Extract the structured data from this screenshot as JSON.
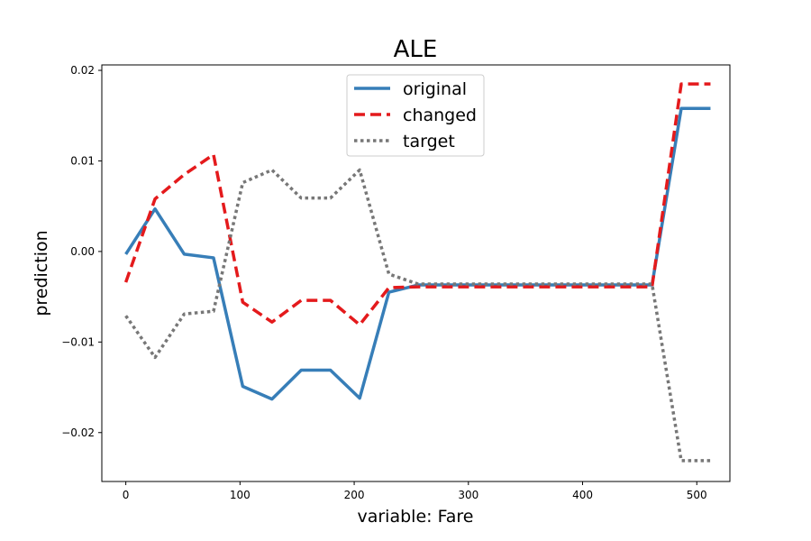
{
  "chart_data": {
    "type": "line",
    "title": "ALE",
    "xlabel": "variable: Fare",
    "ylabel": "prediction",
    "xlim": [
      -21,
      529
    ],
    "ylim": [
      -0.0254,
      0.0206
    ],
    "xticks": [
      0,
      100,
      200,
      300,
      400,
      500
    ],
    "yticks": [
      -0.02,
      -0.01,
      0.0,
      0.01,
      0.02
    ],
    "xtick_labels": [
      "0",
      "100",
      "200",
      "300",
      "400",
      "500"
    ],
    "ytick_labels": [
      "−0.02",
      "−0.01",
      "0.00",
      "0.01",
      "0.02"
    ],
    "grid": false,
    "legend_position": "top-center",
    "x": [
      0,
      25.6,
      51.2,
      76.8,
      102.4,
      128,
      153.6,
      179.2,
      204.8,
      230.4,
      256,
      281.6,
      307.2,
      332.8,
      358.4,
      384,
      409.6,
      435.2,
      460.8,
      486.4,
      512
    ],
    "series": [
      {
        "name": "original",
        "color": "#377eb8",
        "dash": "solid",
        "values": [
          -0.0003,
          0.0047,
          -0.0003,
          -0.0007,
          -0.0149,
          -0.0163,
          -0.0131,
          -0.0131,
          -0.0162,
          -0.0045,
          -0.0037,
          -0.0037,
          -0.0037,
          -0.0037,
          -0.0037,
          -0.0037,
          -0.0037,
          -0.0037,
          -0.0037,
          0.0158,
          0.0158
        ]
      },
      {
        "name": "changed",
        "color": "#e41a1c",
        "dash": "dashed",
        "values": [
          -0.0034,
          0.0058,
          0.0085,
          0.0107,
          -0.0056,
          -0.0078,
          -0.0054,
          -0.0054,
          -0.0081,
          -0.004,
          -0.0039,
          -0.0039,
          -0.0039,
          -0.0039,
          -0.0039,
          -0.0039,
          -0.0039,
          -0.0039,
          -0.0039,
          0.0185,
          0.0185
        ]
      },
      {
        "name": "target",
        "color": "#777777",
        "dash": "dotted",
        "values": [
          -0.0071,
          -0.0117,
          -0.0069,
          -0.0066,
          0.0076,
          0.009,
          0.0059,
          0.0059,
          0.009,
          -0.0025,
          -0.0036,
          -0.0036,
          -0.0036,
          -0.0036,
          -0.0036,
          -0.0036,
          -0.0036,
          -0.0036,
          -0.0036,
          -0.0231,
          -0.0231
        ]
      }
    ]
  }
}
